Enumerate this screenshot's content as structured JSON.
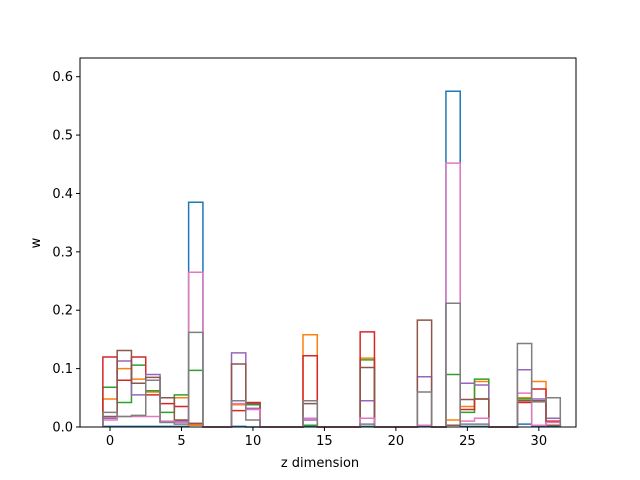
{
  "chart_data": {
    "type": "bar",
    "style": "step-histogram, unfilled bars, overlapping series",
    "xlabel": "z dimension",
    "ylabel": "w",
    "xlim": [
      -2.1,
      32.6
    ],
    "ylim": [
      0,
      0.632
    ],
    "xticks": [
      0,
      5,
      10,
      15,
      20,
      25,
      30
    ],
    "yticks": [
      0.0,
      0.1,
      0.2,
      0.3,
      0.4,
      0.5,
      0.6
    ],
    "x": [
      0,
      1,
      2,
      3,
      4,
      5,
      6,
      7,
      8,
      9,
      10,
      11,
      12,
      13,
      14,
      15,
      16,
      17,
      18,
      19,
      20,
      21,
      22,
      23,
      24,
      25,
      26,
      27,
      28,
      29,
      30,
      31
    ],
    "bin_width": 1,
    "grid": false,
    "legend": "none",
    "series": [
      {
        "color": "#1f77b4",
        "values": [
          0.001,
          0.001,
          0.001,
          0.001,
          0.001,
          0.001,
          0.385,
          0,
          0,
          0.001,
          0,
          0,
          0,
          0,
          0.001,
          0,
          0,
          0,
          0.001,
          0,
          0,
          0,
          0.001,
          0,
          0.575,
          0.001,
          0.001,
          0,
          0,
          0.005,
          0.001,
          0.001
        ]
      },
      {
        "color": "#ff7f0e",
        "values": [
          0.048,
          0.1,
          0.082,
          0.06,
          0.05,
          0.05,
          0.003,
          0,
          0,
          0.038,
          0.04,
          0,
          0,
          0,
          0.158,
          0,
          0,
          0,
          0.118,
          0,
          0,
          0,
          0.003,
          0,
          0.012,
          0.035,
          0.078,
          0,
          0,
          0.05,
          0.078,
          0.008
        ]
      },
      {
        "color": "#2ca02c",
        "values": [
          0.068,
          0.042,
          0.106,
          0.062,
          0.025,
          0.055,
          0.097,
          0,
          0,
          0.045,
          0.038,
          0,
          0,
          0,
          0.003,
          0,
          0,
          0,
          0.115,
          0,
          0,
          0,
          0.003,
          0,
          0.09,
          0.025,
          0.082,
          0,
          0,
          0.048,
          0.003,
          0.003
        ]
      },
      {
        "color": "#d62728",
        "values": [
          0.12,
          0.08,
          0.12,
          0.055,
          0.04,
          0.035,
          0.006,
          0,
          0,
          0.028,
          0.042,
          0,
          0,
          0,
          0.122,
          0,
          0,
          0,
          0.163,
          0,
          0,
          0,
          0.003,
          0,
          0.003,
          0.03,
          0.048,
          0,
          0,
          0.042,
          0.065,
          0.01
        ]
      },
      {
        "color": "#9467bd",
        "values": [
          0.015,
          0.113,
          0.055,
          0.09,
          0.008,
          0.01,
          0.006,
          0,
          0,
          0.127,
          0.032,
          0,
          0,
          0,
          0.012,
          0,
          0,
          0,
          0.045,
          0,
          0,
          0,
          0.086,
          0,
          0.003,
          0.075,
          0.072,
          0,
          0,
          0.098,
          0.048,
          0.015
        ]
      },
      {
        "color": "#8c564b",
        "values": [
          0.018,
          0.131,
          0.075,
          0.085,
          0.05,
          0.012,
          0.006,
          0,
          0,
          0.108,
          0.04,
          0,
          0,
          0,
          0.04,
          0,
          0,
          0,
          0.102,
          0,
          0,
          0,
          0.183,
          0,
          0.003,
          0.047,
          0.048,
          0,
          0,
          0.045,
          0.045,
          0.003
        ]
      },
      {
        "color": "#e377c2",
        "values": [
          0.012,
          0.018,
          0.018,
          0.018,
          0.01,
          0.008,
          0.265,
          0,
          0,
          0.04,
          0.03,
          0,
          0,
          0,
          0.015,
          0,
          0,
          0,
          0.015,
          0,
          0,
          0,
          0.003,
          0,
          0.452,
          0.01,
          0.015,
          0,
          0,
          0.058,
          0.003,
          0.008
        ]
      },
      {
        "color": "#7f7f7f",
        "values": [
          0.025,
          0.018,
          0.02,
          0.08,
          0.008,
          0.005,
          0.162,
          0,
          0,
          0.045,
          0.012,
          0,
          0,
          0,
          0.045,
          0,
          0,
          0,
          0.005,
          0,
          0,
          0,
          0.06,
          0,
          0.212,
          0.005,
          0.005,
          0,
          0,
          0.143,
          0.043,
          0.05
        ]
      }
    ]
  }
}
